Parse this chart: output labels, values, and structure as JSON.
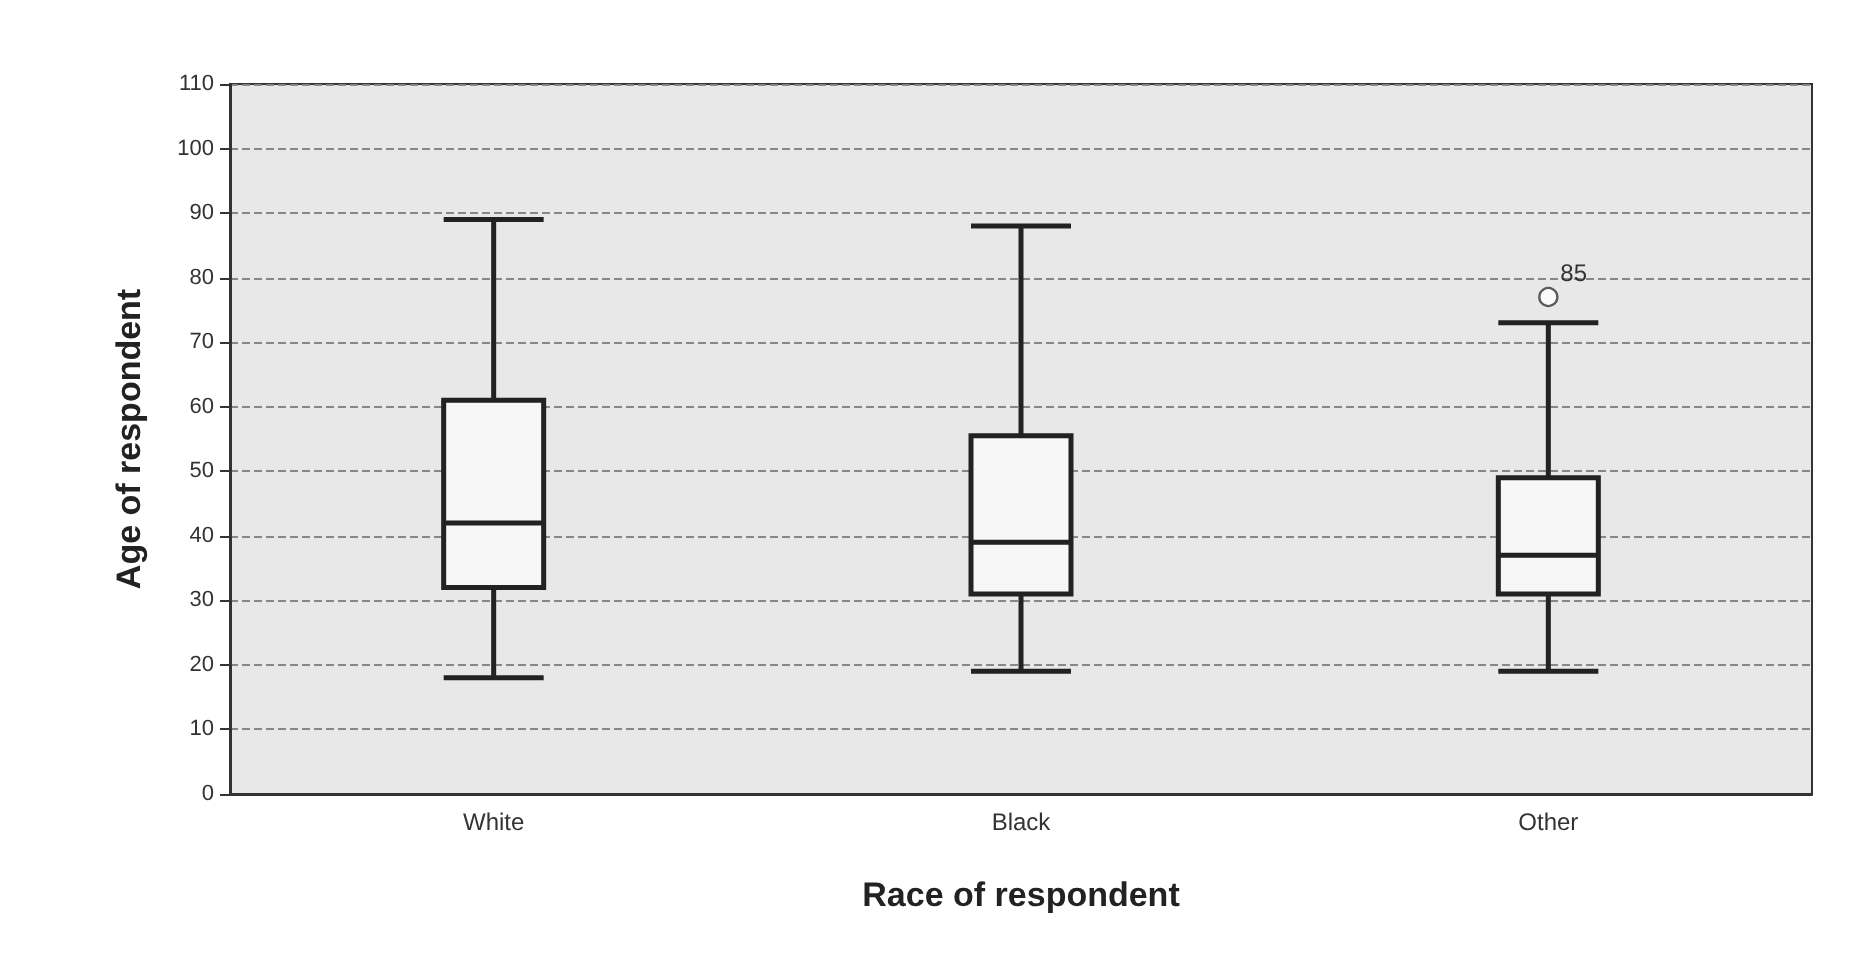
{
  "chart_data": {
    "type": "box",
    "xlabel": "Race of respondent",
    "ylabel": "Age of respondent",
    "categories": [
      "White",
      "Black",
      "Other"
    ],
    "boxes": [
      {
        "low": 18,
        "q1": 32,
        "median": 42,
        "q3": 61,
        "high": 89
      },
      {
        "low": 19,
        "q1": 31,
        "median": 39,
        "q3": 55.5,
        "high": 88
      },
      {
        "low": 19,
        "q1": 31,
        "median": 37,
        "q3": 49,
        "high": 73,
        "outliers": [
          77
        ]
      }
    ],
    "ylim": [
      0,
      110
    ],
    "yticks": [
      0,
      10,
      20,
      30,
      40,
      50,
      60,
      70,
      80,
      90,
      100,
      110
    ],
    "grid": "y",
    "annotations": [
      "85"
    ]
  }
}
